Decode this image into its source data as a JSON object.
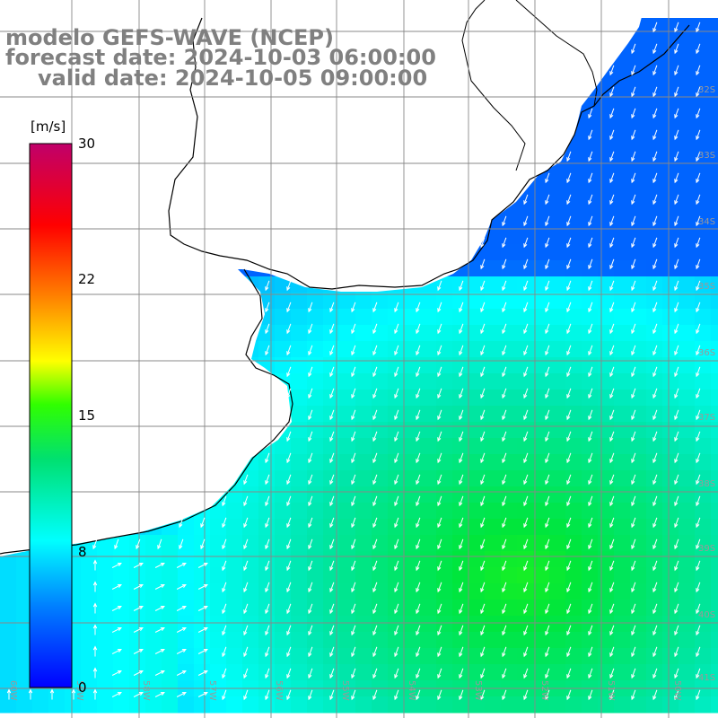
{
  "title": {
    "line1": "modelo GEFS-WAVE (NCEP)",
    "line2": "forecast date: 2024-10-03 06:00:00",
    "line3": "valid date: 2024-10-05 09:00:00"
  },
  "colorbar": {
    "unit": "[m/s]",
    "ticks": [
      "30",
      "22",
      "15",
      "8",
      "0"
    ],
    "tick_values": [
      30,
      22,
      15,
      8,
      0
    ],
    "min": 0,
    "max": 30,
    "colors": [
      "#0000ff",
      "#0080ff",
      "#00ffff",
      "#00ff00",
      "#ffff00",
      "#ff8000",
      "#ff0000",
      "#c00060"
    ]
  },
  "map": {
    "land_color": "#ffffff",
    "coast_color": "#000000",
    "grid_color": "#888888",
    "wind_direction": "from north-north-east, arrows point south-south-west",
    "lat_labels": [
      "32S",
      "33S",
      "34S",
      "35S",
      "36S",
      "37S",
      "38S",
      "39S",
      "40S",
      "41S"
    ],
    "lon_labels": [
      "60W",
      "59W",
      "58W",
      "57W",
      "56W",
      "55W",
      "54W",
      "53W",
      "52W",
      "51W",
      "50W"
    ]
  }
}
